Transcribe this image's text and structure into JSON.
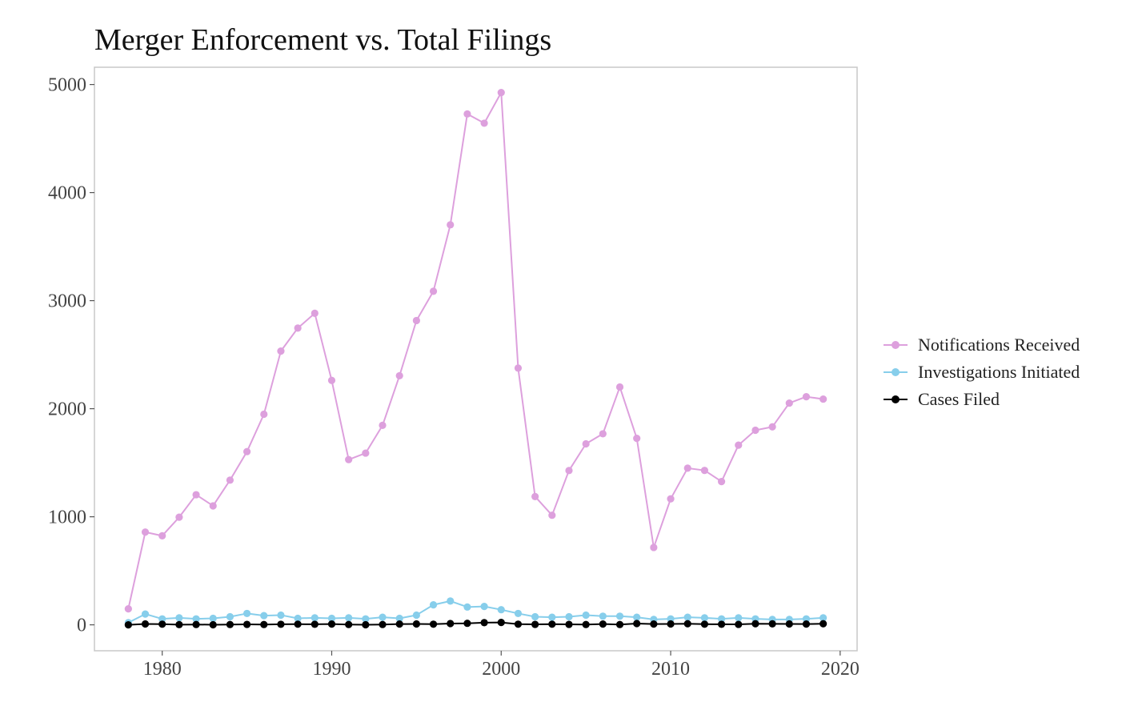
{
  "chart_data": {
    "type": "line",
    "title": "Merger Enforcement vs. Total Filings",
    "xlabel": "",
    "ylabel": "",
    "xlim": [
      1976,
      2021
    ],
    "ylim": [
      -240,
      5160
    ],
    "x_ticks": [
      1980,
      1990,
      2000,
      2010,
      2020
    ],
    "y_ticks": [
      0,
      1000,
      2000,
      3000,
      4000,
      5000
    ],
    "grid": false,
    "legend_position": "right",
    "x": [
      1978,
      1979,
      1980,
      1981,
      1982,
      1983,
      1984,
      1985,
      1986,
      1987,
      1988,
      1989,
      1990,
      1991,
      1992,
      1993,
      1994,
      1995,
      1996,
      1997,
      1998,
      1999,
      2000,
      2001,
      2002,
      2003,
      2004,
      2005,
      2006,
      2007,
      2008,
      2009,
      2010,
      2011,
      2012,
      2013,
      2014,
      2015,
      2016,
      2017,
      2018,
      2019
    ],
    "series": [
      {
        "name": "Notifications Received",
        "color": "#dda0dd",
        "values": [
          148,
          858,
          824,
          996,
          1204,
          1101,
          1339,
          1603,
          1949,
          2533,
          2746,
          2883,
          2262,
          1529,
          1589,
          1846,
          2305,
          2816,
          3087,
          3702,
          4728,
          4642,
          4926,
          2376,
          1187,
          1014,
          1428,
          1675,
          1768,
          2201,
          1726,
          716,
          1166,
          1450,
          1429,
          1326,
          1663,
          1801,
          1832,
          2052,
          2111,
          2089
        ]
      },
      {
        "name": "Investigations Initiated",
        "color": "#87ceeb",
        "values": [
          20,
          100,
          55,
          65,
          55,
          60,
          75,
          105,
          85,
          90,
          60,
          65,
          60,
          65,
          55,
          70,
          60,
          90,
          185,
          220,
          165,
          170,
          140,
          105,
          75,
          70,
          75,
          90,
          80,
          80,
          70,
          50,
          55,
          70,
          65,
          55,
          65,
          55,
          50,
          50,
          55,
          65
        ]
      },
      {
        "name": "Cases Filed",
        "color": "#000000",
        "values": [
          0,
          8,
          6,
          2,
          3,
          1,
          3,
          4,
          3,
          5,
          6,
          5,
          7,
          3,
          1,
          3,
          7,
          8,
          6,
          12,
          14,
          20,
          22,
          6,
          4,
          6,
          4,
          3,
          7,
          3,
          12,
          7,
          8,
          10,
          6,
          5,
          4,
          10,
          9,
          8,
          7,
          10
        ]
      }
    ]
  }
}
